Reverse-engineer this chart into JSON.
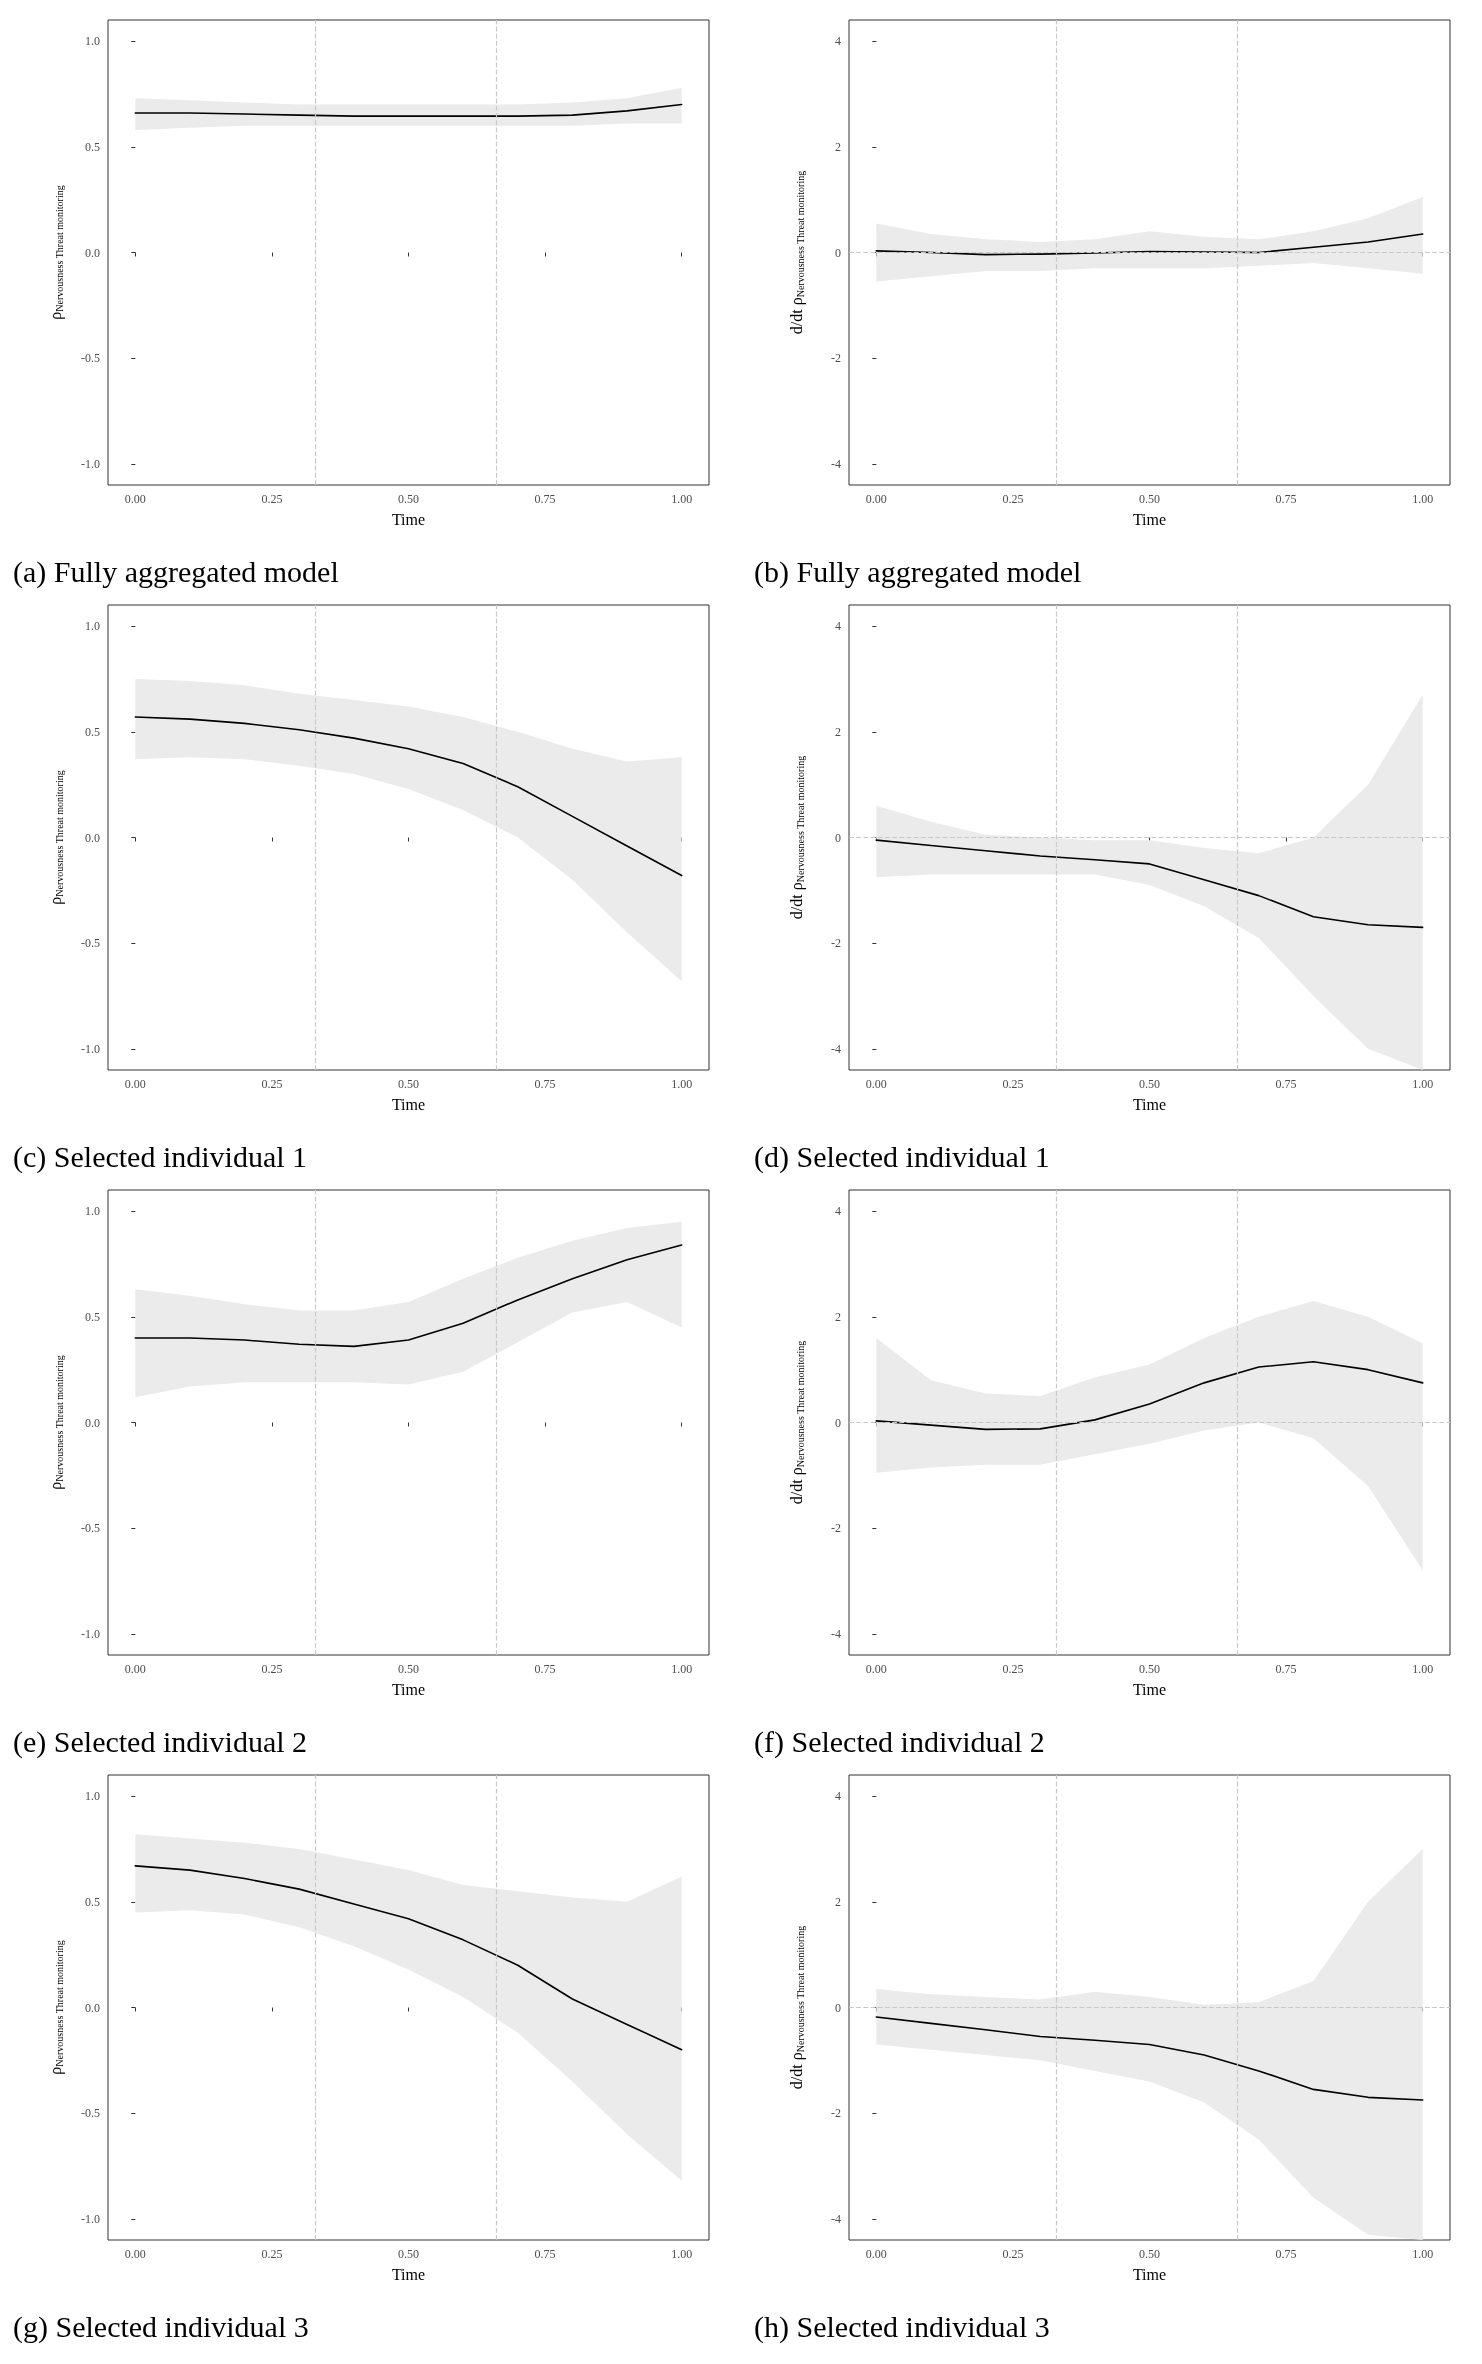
{
  "chart_data": [
    {
      "type": "line",
      "title": "(a) Fully aggregated model",
      "xlabel": "Time",
      "ylabel": "ρ$_{Nervousness Threat monitoring}$",
      "x": [
        0,
        0.1,
        0.2,
        0.3,
        0.4,
        0.5,
        0.6,
        0.7,
        0.8,
        0.9,
        1
      ],
      "xlim": [
        -0.05,
        1.05
      ],
      "xticks": [
        {
          "value": 0,
          "label": "0.00"
        },
        {
          "value": 0.25,
          "label": "0.25"
        },
        {
          "value": 0.5,
          "label": "0.50"
        },
        {
          "value": 0.75,
          "label": "0.75"
        },
        {
          "value": 1,
          "label": "1.00"
        }
      ],
      "ylim": [
        -1.1,
        1.1
      ],
      "yticks": [
        {
          "value": -1,
          "label": "-1.0"
        },
        {
          "value": -0.5,
          "label": "-0.5"
        },
        {
          "value": 0,
          "label": "0.0"
        },
        {
          "value": 0.5,
          "label": "0.5"
        },
        {
          "value": 1,
          "label": "1.0"
        }
      ],
      "line_style": "solid",
      "ref_lines": [
        {
          "axis": "x",
          "value": 0.33,
          "color": "#c8c8c8",
          "line_style": "dashed"
        },
        {
          "axis": "x",
          "value": 0.66,
          "color": "#c8c8c8",
          "line_style": "dashed"
        }
      ],
      "series": [
        {
          "color": "#000000",
          "values": [
            0.66,
            0.66,
            0.655,
            0.65,
            0.645,
            0.645,
            0.645,
            0.645,
            0.65,
            0.67,
            0.7
          ],
          "lower": [
            0.58,
            0.59,
            0.6,
            0.6,
            0.6,
            0.6,
            0.6,
            0.6,
            0.6,
            0.61,
            0.61
          ],
          "upper": [
            0.73,
            0.72,
            0.71,
            0.7,
            0.7,
            0.7,
            0.7,
            0.7,
            0.71,
            0.73,
            0.78
          ]
        }
      ]
    },
    {
      "type": "line",
      "title": "(b) Fully aggregated model",
      "xlabel": "Time",
      "ylabel": "d/dt ρ$_{Nervousness Threat monitoring}$",
      "x": [
        0,
        0.1,
        0.2,
        0.3,
        0.4,
        0.5,
        0.6,
        0.7,
        0.8,
        0.9,
        1
      ],
      "xlim": [
        -0.05,
        1.05
      ],
      "xticks": [
        {
          "value": 0,
          "label": "0.00"
        },
        {
          "value": 0.25,
          "label": "0.25"
        },
        {
          "value": 0.5,
          "label": "0.50"
        },
        {
          "value": 0.75,
          "label": "0.75"
        },
        {
          "value": 1,
          "label": "1.00"
        }
      ],
      "ylim": [
        -4.4,
        4.4
      ],
      "yticks": [
        -4,
        -2,
        0,
        2,
        4
      ],
      "line_style": "solid",
      "ref_lines": [
        {
          "axis": "x",
          "value": 0.33,
          "color": "#c8c8c8",
          "line_style": "dashed"
        },
        {
          "axis": "x",
          "value": 0.66,
          "color": "#c8c8c8",
          "line_style": "dashed"
        },
        {
          "axis": "y",
          "value": 0,
          "color": "#c8c8c8",
          "line_style": "dashed"
        }
      ],
      "series": [
        {
          "color": "#000000",
          "values": [
            0.03,
            0,
            -0.04,
            -0.03,
            -0.01,
            0.02,
            0.01,
            0,
            0.1,
            0.2,
            0.35
          ],
          "lower": [
            -0.55,
            -0.45,
            -0.35,
            -0.35,
            -0.3,
            -0.3,
            -0.3,
            -0.25,
            -0.2,
            -0.3,
            -0.4
          ],
          "upper": [
            0.55,
            0.35,
            0.25,
            0.2,
            0.25,
            0.4,
            0.3,
            0.25,
            0.4,
            0.65,
            1.05
          ]
        }
      ]
    },
    {
      "type": "line",
      "title": "(c) Selected individual 1",
      "xlabel": "Time",
      "ylabel": "ρ$_{Nervousness Threat monitoring}$",
      "x": [
        0,
        0.1,
        0.2,
        0.3,
        0.4,
        0.5,
        0.6,
        0.7,
        0.8,
        0.9,
        1
      ],
      "xlim": [
        -0.05,
        1.05
      ],
      "xticks": [
        {
          "value": 0,
          "label": "0.00"
        },
        {
          "value": 0.25,
          "label": "0.25"
        },
        {
          "value": 0.5,
          "label": "0.50"
        },
        {
          "value": 0.75,
          "label": "0.75"
        },
        {
          "value": 1,
          "label": "1.00"
        }
      ],
      "ylim": [
        -1.1,
        1.1
      ],
      "yticks": [
        {
          "value": -1,
          "label": "-1.0"
        },
        {
          "value": -0.5,
          "label": "-0.5"
        },
        {
          "value": 0,
          "label": "0.0"
        },
        {
          "value": 0.5,
          "label": "0.5"
        },
        {
          "value": 1,
          "label": "1.0"
        }
      ],
      "line_style": "solid",
      "ref_lines": [
        {
          "axis": "x",
          "value": 0.33,
          "color": "#c8c8c8",
          "line_style": "dashed"
        },
        {
          "axis": "x",
          "value": 0.66,
          "color": "#c8c8c8",
          "line_style": "dashed"
        }
      ],
      "series": [
        {
          "color": "#000000",
          "values": [
            0.57,
            0.56,
            0.54,
            0.51,
            0.47,
            0.42,
            0.35,
            0.24,
            0.1,
            -0.04,
            -0.18
          ],
          "lower": [
            0.37,
            0.38,
            0.37,
            0.34,
            0.3,
            0.23,
            0.13,
            0,
            -0.2,
            -0.45,
            -0.68
          ],
          "upper": [
            0.75,
            0.74,
            0.72,
            0.68,
            0.65,
            0.62,
            0.57,
            0.5,
            0.42,
            0.36,
            0.38
          ]
        }
      ]
    },
    {
      "type": "line",
      "title": "(d) Selected individual 1",
      "xlabel": "Time",
      "ylabel": "d/dt ρ$_{Nervousness Threat monitoring}$",
      "x": [
        0,
        0.1,
        0.2,
        0.3,
        0.4,
        0.5,
        0.6,
        0.7,
        0.8,
        0.9,
        1
      ],
      "xlim": [
        -0.05,
        1.05
      ],
      "xticks": [
        {
          "value": 0,
          "label": "0.00"
        },
        {
          "value": 0.25,
          "label": "0.25"
        },
        {
          "value": 0.5,
          "label": "0.50"
        },
        {
          "value": 0.75,
          "label": "0.75"
        },
        {
          "value": 1,
          "label": "1.00"
        }
      ],
      "ylim": [
        -4.4,
        4.4
      ],
      "yticks": [
        -4,
        -2,
        0,
        2,
        4
      ],
      "line_style": "solid",
      "ref_lines": [
        {
          "axis": "x",
          "value": 0.33,
          "color": "#c8c8c8",
          "line_style": "dashed"
        },
        {
          "axis": "x",
          "value": 0.66,
          "color": "#c8c8c8",
          "line_style": "dashed"
        },
        {
          "axis": "y",
          "value": 0,
          "color": "#c8c8c8",
          "line_style": "dashed"
        }
      ],
      "series": [
        {
          "color": "#000000",
          "values": [
            -0.05,
            -0.15,
            -0.25,
            -0.35,
            -0.42,
            -0.5,
            -0.8,
            -1.1,
            -1.5,
            -1.65,
            -1.7
          ],
          "lower": [
            -0.75,
            -0.7,
            -0.7,
            -0.7,
            -0.7,
            -0.9,
            -1.3,
            -1.9,
            -3,
            -4,
            -4.4
          ],
          "upper": [
            0.6,
            0.3,
            0.05,
            0,
            -0.05,
            -0.05,
            -0.2,
            -0.3,
            0,
            1,
            2.7
          ]
        }
      ]
    },
    {
      "type": "line",
      "title": "(e) Selected individual 2",
      "xlabel": "Time",
      "ylabel": "ρ$_{Nervousness Threat monitoring}$",
      "x": [
        0,
        0.1,
        0.2,
        0.3,
        0.4,
        0.5,
        0.6,
        0.7,
        0.8,
        0.9,
        1
      ],
      "xlim": [
        -0.05,
        1.05
      ],
      "xticks": [
        {
          "value": 0,
          "label": "0.00"
        },
        {
          "value": 0.25,
          "label": "0.25"
        },
        {
          "value": 0.5,
          "label": "0.50"
        },
        {
          "value": 0.75,
          "label": "0.75"
        },
        {
          "value": 1,
          "label": "1.00"
        }
      ],
      "ylim": [
        -1.1,
        1.1
      ],
      "yticks": [
        {
          "value": -1,
          "label": "-1.0"
        },
        {
          "value": -0.5,
          "label": "-0.5"
        },
        {
          "value": 0,
          "label": "0.0"
        },
        {
          "value": 0.5,
          "label": "0.5"
        },
        {
          "value": 1,
          "label": "1.0"
        }
      ],
      "line_style": "solid",
      "ref_lines": [
        {
          "axis": "x",
          "value": 0.33,
          "color": "#c8c8c8",
          "line_style": "dashed"
        },
        {
          "axis": "x",
          "value": 0.66,
          "color": "#c8c8c8",
          "line_style": "dashed"
        }
      ],
      "series": [
        {
          "color": "#000000",
          "values": [
            0.4,
            0.4,
            0.39,
            0.37,
            0.36,
            0.39,
            0.47,
            0.58,
            0.68,
            0.77,
            0.84
          ],
          "lower": [
            0.12,
            0.17,
            0.19,
            0.19,
            0.19,
            0.18,
            0.24,
            0.38,
            0.52,
            0.57,
            0.45
          ],
          "upper": [
            0.63,
            0.6,
            0.56,
            0.53,
            0.53,
            0.57,
            0.68,
            0.78,
            0.86,
            0.92,
            0.95
          ]
        }
      ]
    },
    {
      "type": "line",
      "title": "(f) Selected individual 2",
      "xlabel": "Time",
      "ylabel": "d/dt ρ$_{Nervousness Threat monitoring}$",
      "x": [
        0,
        0.1,
        0.2,
        0.3,
        0.4,
        0.5,
        0.6,
        0.7,
        0.8,
        0.9,
        1
      ],
      "xlim": [
        -0.05,
        1.05
      ],
      "xticks": [
        {
          "value": 0,
          "label": "0.00"
        },
        {
          "value": 0.25,
          "label": "0.25"
        },
        {
          "value": 0.5,
          "label": "0.50"
        },
        {
          "value": 0.75,
          "label": "0.75"
        },
        {
          "value": 1,
          "label": "1.00"
        }
      ],
      "ylim": [
        -4.4,
        4.4
      ],
      "yticks": [
        -4,
        -2,
        0,
        2,
        4
      ],
      "line_style": "solid",
      "ref_lines": [
        {
          "axis": "x",
          "value": 0.33,
          "color": "#c8c8c8",
          "line_style": "dashed"
        },
        {
          "axis": "x",
          "value": 0.66,
          "color": "#c8c8c8",
          "line_style": "dashed"
        },
        {
          "axis": "y",
          "value": 0,
          "color": "#c8c8c8",
          "line_style": "dashed"
        }
      ],
      "series": [
        {
          "color": "#000000",
          "values": [
            0.03,
            -0.05,
            -0.13,
            -0.12,
            0.05,
            0.35,
            0.75,
            1.05,
            1.15,
            1,
            0.75
          ],
          "lower": [
            -0.95,
            -0.85,
            -0.8,
            -0.8,
            -0.6,
            -0.4,
            -0.15,
            0,
            -0.3,
            -1.2,
            -2.8
          ],
          "upper": [
            1.6,
            0.8,
            0.55,
            0.5,
            0.85,
            1.1,
            1.6,
            2,
            2.3,
            2,
            1.5
          ]
        }
      ]
    },
    {
      "type": "line",
      "title": "(g) Selected individual 3",
      "xlabel": "Time",
      "ylabel": "ρ$_{Nervousness Threat monitoring}$",
      "x": [
        0,
        0.1,
        0.2,
        0.3,
        0.4,
        0.5,
        0.6,
        0.7,
        0.8,
        0.9,
        1
      ],
      "xlim": [
        -0.05,
        1.05
      ],
      "xticks": [
        {
          "value": 0,
          "label": "0.00"
        },
        {
          "value": 0.25,
          "label": "0.25"
        },
        {
          "value": 0.5,
          "label": "0.50"
        },
        {
          "value": 0.75,
          "label": "0.75"
        },
        {
          "value": 1,
          "label": "1.00"
        }
      ],
      "ylim": [
        -1.1,
        1.1
      ],
      "yticks": [
        {
          "value": -1,
          "label": "-1.0"
        },
        {
          "value": -0.5,
          "label": "-0.5"
        },
        {
          "value": 0,
          "label": "0.0"
        },
        {
          "value": 0.5,
          "label": "0.5"
        },
        {
          "value": 1,
          "label": "1.0"
        }
      ],
      "line_style": "solid",
      "ref_lines": [
        {
          "axis": "x",
          "value": 0.33,
          "color": "#c8c8c8",
          "line_style": "dashed"
        },
        {
          "axis": "x",
          "value": 0.66,
          "color": "#c8c8c8",
          "line_style": "dashed"
        }
      ],
      "series": [
        {
          "color": "#000000",
          "values": [
            0.67,
            0.65,
            0.61,
            0.56,
            0.49,
            0.42,
            0.32,
            0.2,
            0.04,
            -0.08,
            -0.2
          ],
          "lower": [
            0.45,
            0.46,
            0.44,
            0.38,
            0.29,
            0.18,
            0.05,
            -0.12,
            -0.35,
            -0.6,
            -0.82
          ],
          "upper": [
            0.82,
            0.8,
            0.78,
            0.75,
            0.7,
            0.65,
            0.58,
            0.55,
            0.52,
            0.5,
            0.62
          ]
        }
      ]
    },
    {
      "type": "line",
      "title": "(h) Selected individual 3",
      "xlabel": "Time",
      "ylabel": "d/dt ρ$_{Nervousness Threat monitoring}$",
      "x": [
        0,
        0.1,
        0.2,
        0.3,
        0.4,
        0.5,
        0.6,
        0.7,
        0.8,
        0.9,
        1
      ],
      "xlim": [
        -0.05,
        1.05
      ],
      "xticks": [
        {
          "value": 0,
          "label": "0.00"
        },
        {
          "value": 0.25,
          "label": "0.25"
        },
        {
          "value": 0.5,
          "label": "0.50"
        },
        {
          "value": 0.75,
          "label": "0.75"
        },
        {
          "value": 1,
          "label": "1.00"
        }
      ],
      "ylim": [
        -4.4,
        4.4
      ],
      "yticks": [
        -4,
        -2,
        0,
        2,
        4
      ],
      "line_style": "solid",
      "ref_lines": [
        {
          "axis": "x",
          "value": 0.33,
          "color": "#c8c8c8",
          "line_style": "dashed"
        },
        {
          "axis": "x",
          "value": 0.66,
          "color": "#c8c8c8",
          "line_style": "dashed"
        },
        {
          "axis": "y",
          "value": 0,
          "color": "#c8c8c8",
          "line_style": "dashed"
        }
      ],
      "series": [
        {
          "color": "#000000",
          "values": [
            -0.18,
            -0.3,
            -0.42,
            -0.55,
            -0.62,
            -0.7,
            -0.9,
            -1.2,
            -1.55,
            -1.7,
            -1.75
          ],
          "lower": [
            -0.7,
            -0.8,
            -0.9,
            -1,
            -1.2,
            -1.4,
            -1.8,
            -2.5,
            -3.6,
            -4.3,
            -4.4
          ],
          "upper": [
            0.35,
            0.25,
            0.2,
            0.15,
            0.3,
            0.2,
            0.05,
            0.1,
            0.5,
            2,
            3
          ]
        }
      ]
    }
  ]
}
